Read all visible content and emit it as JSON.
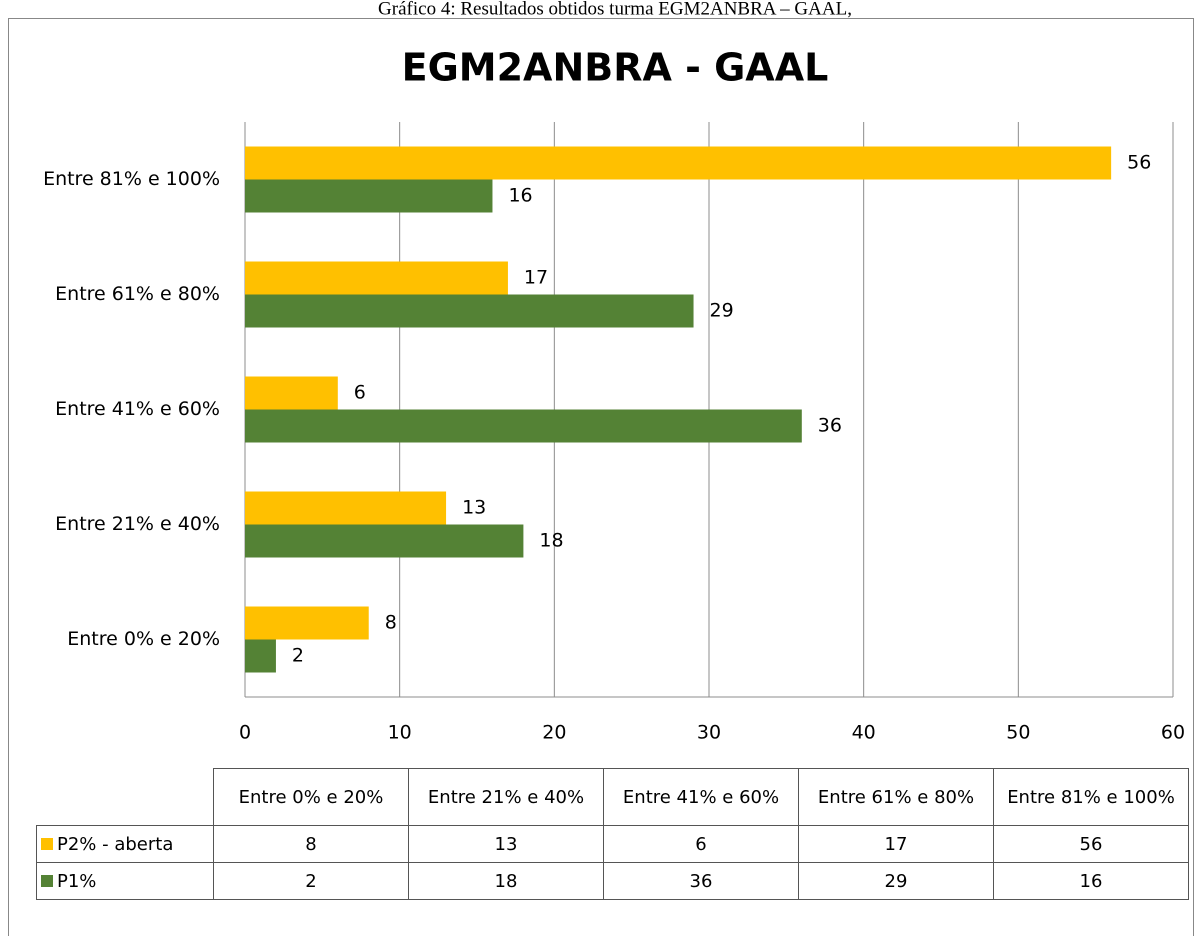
{
  "caption": "Gráfico 4: Resultados obtidos turma EGM2ANBRA – GAAL,",
  "chart_data": {
    "type": "barh",
    "title": "EGM2ANBRA - GAAL",
    "categories": [
      "Entre 0% e 20%",
      "Entre 21% e 40%",
      "Entre 41% e 60%",
      "Entre 61% e 80%",
      "Entre 81% e 100%"
    ],
    "series": [
      {
        "name": "P2% - aberta",
        "color": "#ffc000",
        "values": [
          8,
          13,
          6,
          17,
          56
        ]
      },
      {
        "name": "P1%",
        "color": "#548235",
        "values": [
          2,
          18,
          36,
          29,
          16
        ]
      }
    ],
    "xlim": [
      0,
      60
    ],
    "xticks": [
      0,
      10,
      20,
      30,
      40,
      50,
      60
    ],
    "grid": true,
    "data_table": true
  }
}
